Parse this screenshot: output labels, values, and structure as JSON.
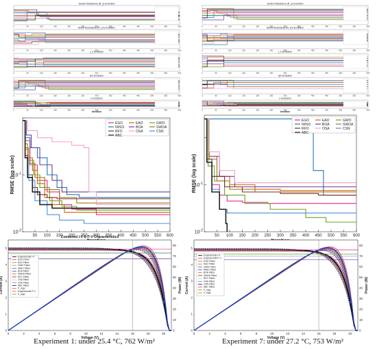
{
  "algorithms": [
    "EGO",
    "EAO",
    "GWO",
    "IWSO",
    "BOA",
    "SWOA",
    "RFO",
    "OSA",
    "CSN",
    "ABC"
  ],
  "colors": [
    "#e7298a",
    "#d95f02",
    "#66a61e",
    "#1f78b4",
    "#6a3d9a",
    "#a6761d",
    "#7b2d26",
    "#f0a0d0",
    "#4a90d9",
    "#222222"
  ],
  "captions": {
    "left": "Experiment 1: under 25.4 °C, 762 W/m²",
    "right": "Experiment 7: under 27.2 °C, 753 W/m²"
  },
  "param_panels": {
    "left": {
      "titles": [
        "Series Resistance (R_s) Evolution",
        "Shunt Resistance (R_sh) Evolution",
        "I_0 Evolution",
        "Iph Evolution",
        "n Evolution"
      ],
      "xlabel": "Iteration",
      "xticks": [
        "0",
        "50",
        "100",
        "150",
        "200",
        "250",
        "300",
        "350",
        "400",
        "450",
        "500",
        "550",
        "600"
      ]
    },
    "right": {
      "titles": [
        "Series Resistance (R_s) Evolution",
        "Shunt Resistance (R_sh) Evolution",
        "I_0 Evolution",
        "Iph Evolution",
        "n Evolution"
      ],
      "xlabel": "Iteration",
      "xticks": [
        "0",
        "50",
        "100",
        "150",
        "200",
        "250",
        "300",
        "350",
        "400",
        "450",
        "500",
        "550",
        "600"
      ]
    }
  },
  "chart_data": [
    {
      "type": "line",
      "id": "convergence-left",
      "xlabel": "Iteration",
      "ylabel": "RMSE (log scale)",
      "xlim": [
        0,
        600
      ],
      "ylim": [
        0.01,
        1
      ],
      "yscale": "log",
      "xticks": [
        50,
        100,
        150,
        200,
        250,
        300,
        350,
        400,
        450,
        500,
        550,
        600
      ],
      "legend": "top-right",
      "series": [
        {
          "name": "EGO",
          "x": [
            0,
            10,
            30,
            60,
            100,
            150,
            200,
            300,
            600
          ],
          "y": [
            0.9,
            0.4,
            0.15,
            0.08,
            0.05,
            0.03,
            0.025,
            0.02,
            0.02
          ]
        },
        {
          "name": "EAO",
          "x": [
            0,
            10,
            20,
            40,
            60,
            90,
            120,
            170,
            600
          ],
          "y": [
            0.9,
            0.35,
            0.2,
            0.12,
            0.07,
            0.04,
            0.03,
            0.022,
            0.022
          ]
        },
        {
          "name": "GWO",
          "x": [
            0,
            10,
            25,
            45,
            70,
            110,
            160,
            220,
            600
          ],
          "y": [
            0.9,
            0.3,
            0.18,
            0.1,
            0.06,
            0.035,
            0.028,
            0.024,
            0.024
          ]
        },
        {
          "name": "IWSO",
          "x": [
            0,
            10,
            30,
            60,
            100,
            140,
            180,
            230,
            600
          ],
          "y": [
            0.9,
            0.45,
            0.3,
            0.2,
            0.1,
            0.06,
            0.045,
            0.04,
            0.04
          ]
        },
        {
          "name": "BOA",
          "x": [
            0,
            15,
            35,
            70,
            120,
            160,
            600
          ],
          "y": [
            0.9,
            0.5,
            0.3,
            0.15,
            0.08,
            0.05,
            0.05
          ]
        },
        {
          "name": "SWOA",
          "x": [
            0,
            10,
            25,
            50,
            90,
            150,
            220,
            600
          ],
          "y": [
            0.9,
            0.28,
            0.16,
            0.09,
            0.055,
            0.04,
            0.032,
            0.032
          ]
        },
        {
          "name": "RFO",
          "x": [
            0,
            10,
            20,
            40,
            60,
            100,
            140,
            600
          ],
          "y": [
            0.9,
            0.22,
            0.1,
            0.06,
            0.045,
            0.04,
            0.038,
            0.038
          ]
        },
        {
          "name": "OSA",
          "x": [
            0,
            20,
            60,
            120,
            200,
            250,
            270,
            300,
            600
          ],
          "y": [
            0.9,
            0.6,
            0.45,
            0.38,
            0.33,
            0.3,
            0.05,
            0.03,
            0.03
          ]
        },
        {
          "name": "CSN",
          "x": [
            0,
            10,
            25,
            50,
            100,
            150,
            250,
            600
          ],
          "y": [
            0.9,
            0.2,
            0.08,
            0.035,
            0.02,
            0.016,
            0.014,
            0.013
          ]
        },
        {
          "name": "ABC",
          "x": [
            0,
            10,
            20,
            40,
            70,
            120,
            600
          ],
          "y": [
            0.9,
            0.2,
            0.09,
            0.05,
            0.03,
            0.026,
            0.026
          ]
        }
      ]
    },
    {
      "type": "line",
      "id": "convergence-right",
      "xlabel": "Iteration",
      "ylabel": "RMSE (log scale)",
      "xlim": [
        0,
        600
      ],
      "ylim": [
        0.01,
        3
      ],
      "yscale": "log",
      "xticks": [
        50,
        100,
        150,
        200,
        250,
        300,
        350,
        400,
        450,
        500,
        550,
        600
      ],
      "legend": "top-right",
      "series": [
        {
          "name": "EGO",
          "x": [
            0,
            10,
            30,
            60,
            90,
            150,
            250,
            600
          ],
          "y": [
            2.5,
            0.3,
            0.1,
            0.06,
            0.045,
            0.042,
            0.04,
            0.04
          ]
        },
        {
          "name": "EAO",
          "x": [
            0,
            20,
            50,
            100,
            200,
            300,
            600
          ],
          "y": [
            2.5,
            0.4,
            0.15,
            0.1,
            0.08,
            0.075,
            0.075
          ]
        },
        {
          "name": "GWO",
          "x": [
            0,
            15,
            40,
            80,
            160,
            260,
            400,
            480,
            600
          ],
          "y": [
            2.5,
            0.25,
            0.12,
            0.06,
            0.04,
            0.03,
            0.02,
            0.016,
            0.016
          ]
        },
        {
          "name": "IWSO",
          "x": [
            0,
            50,
            100,
            150,
            250,
            350,
            400,
            430,
            470,
            600
          ],
          "y": [
            2.5,
            2.5,
            2.5,
            2.5,
            2.5,
            2.5,
            2.5,
            0.2,
            0.06,
            0.06
          ]
        },
        {
          "name": "BOA",
          "x": [
            0,
            20,
            60,
            120,
            600
          ],
          "y": [
            2.5,
            0.4,
            0.15,
            0.09,
            0.09
          ]
        },
        {
          "name": "SWOA",
          "x": [
            0,
            20,
            50,
            100,
            200,
            600
          ],
          "y": [
            2.5,
            0.35,
            0.12,
            0.08,
            0.07,
            0.07
          ]
        },
        {
          "name": "RFO",
          "x": [
            0,
            10,
            30,
            80,
            150,
            300,
            450,
            600
          ],
          "y": [
            2.5,
            0.35,
            0.15,
            0.09,
            0.07,
            0.065,
            0.06,
            0.06
          ]
        },
        {
          "name": "OSA",
          "x": [
            0,
            20,
            60,
            120,
            600
          ],
          "y": [
            2.5,
            0.5,
            0.2,
            0.11,
            0.11
          ]
        },
        {
          "name": "CSN",
          "x": [
            0,
            10,
            30,
            60,
            90,
            600
          ],
          "y": [
            2.5,
            0.3,
            0.08,
            0.03,
            0.025,
            0.025
          ]
        },
        {
          "name": "ABC",
          "x": [
            0,
            10,
            30,
            60,
            85,
            90
          ],
          "y": [
            2.5,
            0.3,
            0.07,
            0.03,
            0.015,
            0.01
          ]
        }
      ]
    },
    {
      "type": "line",
      "id": "iv-pv-left",
      "title": "Combined I-V & P-V Characteristics",
      "xlabel": "Voltage (V)",
      "ylabel": "Current (A)",
      "y2label": "Power (W)",
      "xlim": [
        0,
        21
      ],
      "ylim": [
        0,
        5.5
      ],
      "y2lim": [
        0,
        85
      ],
      "mpp_v": 16,
      "isc": 4.95,
      "pmax": 73,
      "xticks": [
        0,
        2,
        4,
        6,
        8,
        10,
        12,
        14,
        16,
        18,
        20
      ],
      "yticks": [
        0,
        1,
        2,
        3,
        4,
        5
      ],
      "y2ticks": [
        0,
        10,
        20,
        30,
        40,
        50,
        60,
        70,
        80
      ],
      "legend": [
        "Experimental I-V",
        "EGO Fitted",
        "EAO Fitted",
        "GWO Fitted",
        "IWSO Fitted",
        "BOA Fitted",
        "SWOA Fitted",
        "RFO Fitted",
        "OSA Fitted",
        "CSN Fitted",
        "ABC Fitted",
        "P_mpp",
        "Experimental P-V",
        "V_mpp"
      ],
      "legend_pos": "upper-left"
    },
    {
      "type": "line",
      "id": "iv-pv-right",
      "xlabel": "Voltage (V)",
      "ylabel": "Current (A)",
      "y2label": "Power (W)",
      "xlim": [
        0,
        21
      ],
      "ylim": [
        0,
        5.5
      ],
      "y2lim": [
        0,
        85
      ],
      "mpp_v": 16,
      "isc": 4.9,
      "pmax": 70,
      "xticks": [
        0,
        2,
        4,
        6,
        8,
        10,
        12,
        14,
        16,
        18,
        20
      ],
      "yticks": [
        0,
        1,
        2,
        3,
        4,
        5
      ],
      "y2ticks": [
        0,
        10,
        20,
        30,
        40,
        50,
        60,
        70,
        80
      ],
      "legend": [
        "Experimental I-V",
        "Experimental P-V",
        "EGO Fitted",
        "EAO Fitted",
        "GWO Fitted",
        "IWSO Fitted",
        "BOA Fitted",
        "SWOA Fitted",
        "RFO Fitted",
        "OSA Fitted",
        "CSN Fitted",
        "ABC Fitted",
        "P_mpp",
        "V_mpp"
      ],
      "legend_pos": "center-left"
    }
  ]
}
